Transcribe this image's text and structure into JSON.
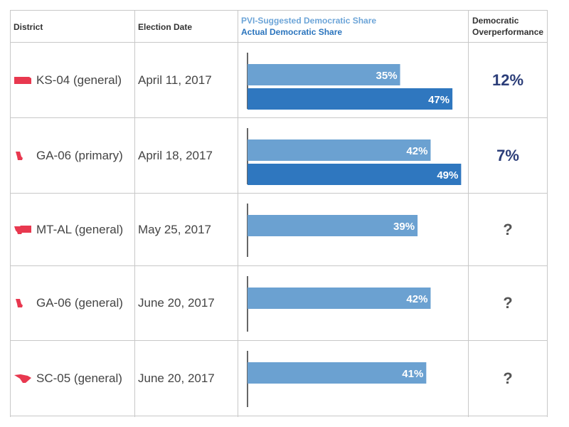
{
  "header": {
    "district": "District",
    "election_date": "Election Date",
    "legend_pvi": "PVI-Suggested Democratic Share",
    "legend_actual": "Actual Democratic Share",
    "overperformance_line1": "Democratic",
    "overperformance_line2": "Overperformance"
  },
  "colors": {
    "pvi_bar": "#6ba1d1",
    "actual_bar": "#2f77bf",
    "state_icon": "#e8384f",
    "overperformance_text": "#2c3e79"
  },
  "rows": [
    {
      "district": "KS-04 (general)",
      "date": "April 11, 2017",
      "state_icon": "kansas-icon",
      "pvi": "35%",
      "actual": "47%",
      "overperformance": "12%"
    },
    {
      "district": "GA-06 (primary)",
      "date": "April 18, 2017",
      "state_icon": "georgia-icon",
      "pvi": "42%",
      "actual": "49%",
      "overperformance": "7%"
    },
    {
      "district": "MT-AL (general)",
      "date": "May 25, 2017",
      "state_icon": "montana-icon",
      "pvi": "39%",
      "actual": null,
      "overperformance": "?"
    },
    {
      "district": "GA-06 (general)",
      "date": "June 20, 2017",
      "state_icon": "georgia-icon",
      "pvi": "42%",
      "actual": null,
      "overperformance": "?"
    },
    {
      "district": "SC-05 (general)",
      "date": "June 20, 2017",
      "state_icon": "south-carolina-icon",
      "pvi": "41%",
      "actual": null,
      "overperformance": "?"
    }
  ],
  "chart_data": {
    "type": "bar",
    "categories": [
      "KS-04 (general)",
      "GA-06 (primary)",
      "MT-AL (general)",
      "GA-06 (general)",
      "SC-05 (general)"
    ],
    "series": [
      {
        "name": "PVI-Suggested Democratic Share",
        "values": [
          35,
          42,
          39,
          42,
          41
        ]
      },
      {
        "name": "Actual Democratic Share",
        "values": [
          47,
          49,
          null,
          null,
          null
        ]
      }
    ],
    "orientation": "horizontal",
    "xlim": [
      0,
      55
    ],
    "title": "",
    "xlabel": "",
    "ylabel": "",
    "grid": false,
    "legend_placement": "column-header"
  }
}
